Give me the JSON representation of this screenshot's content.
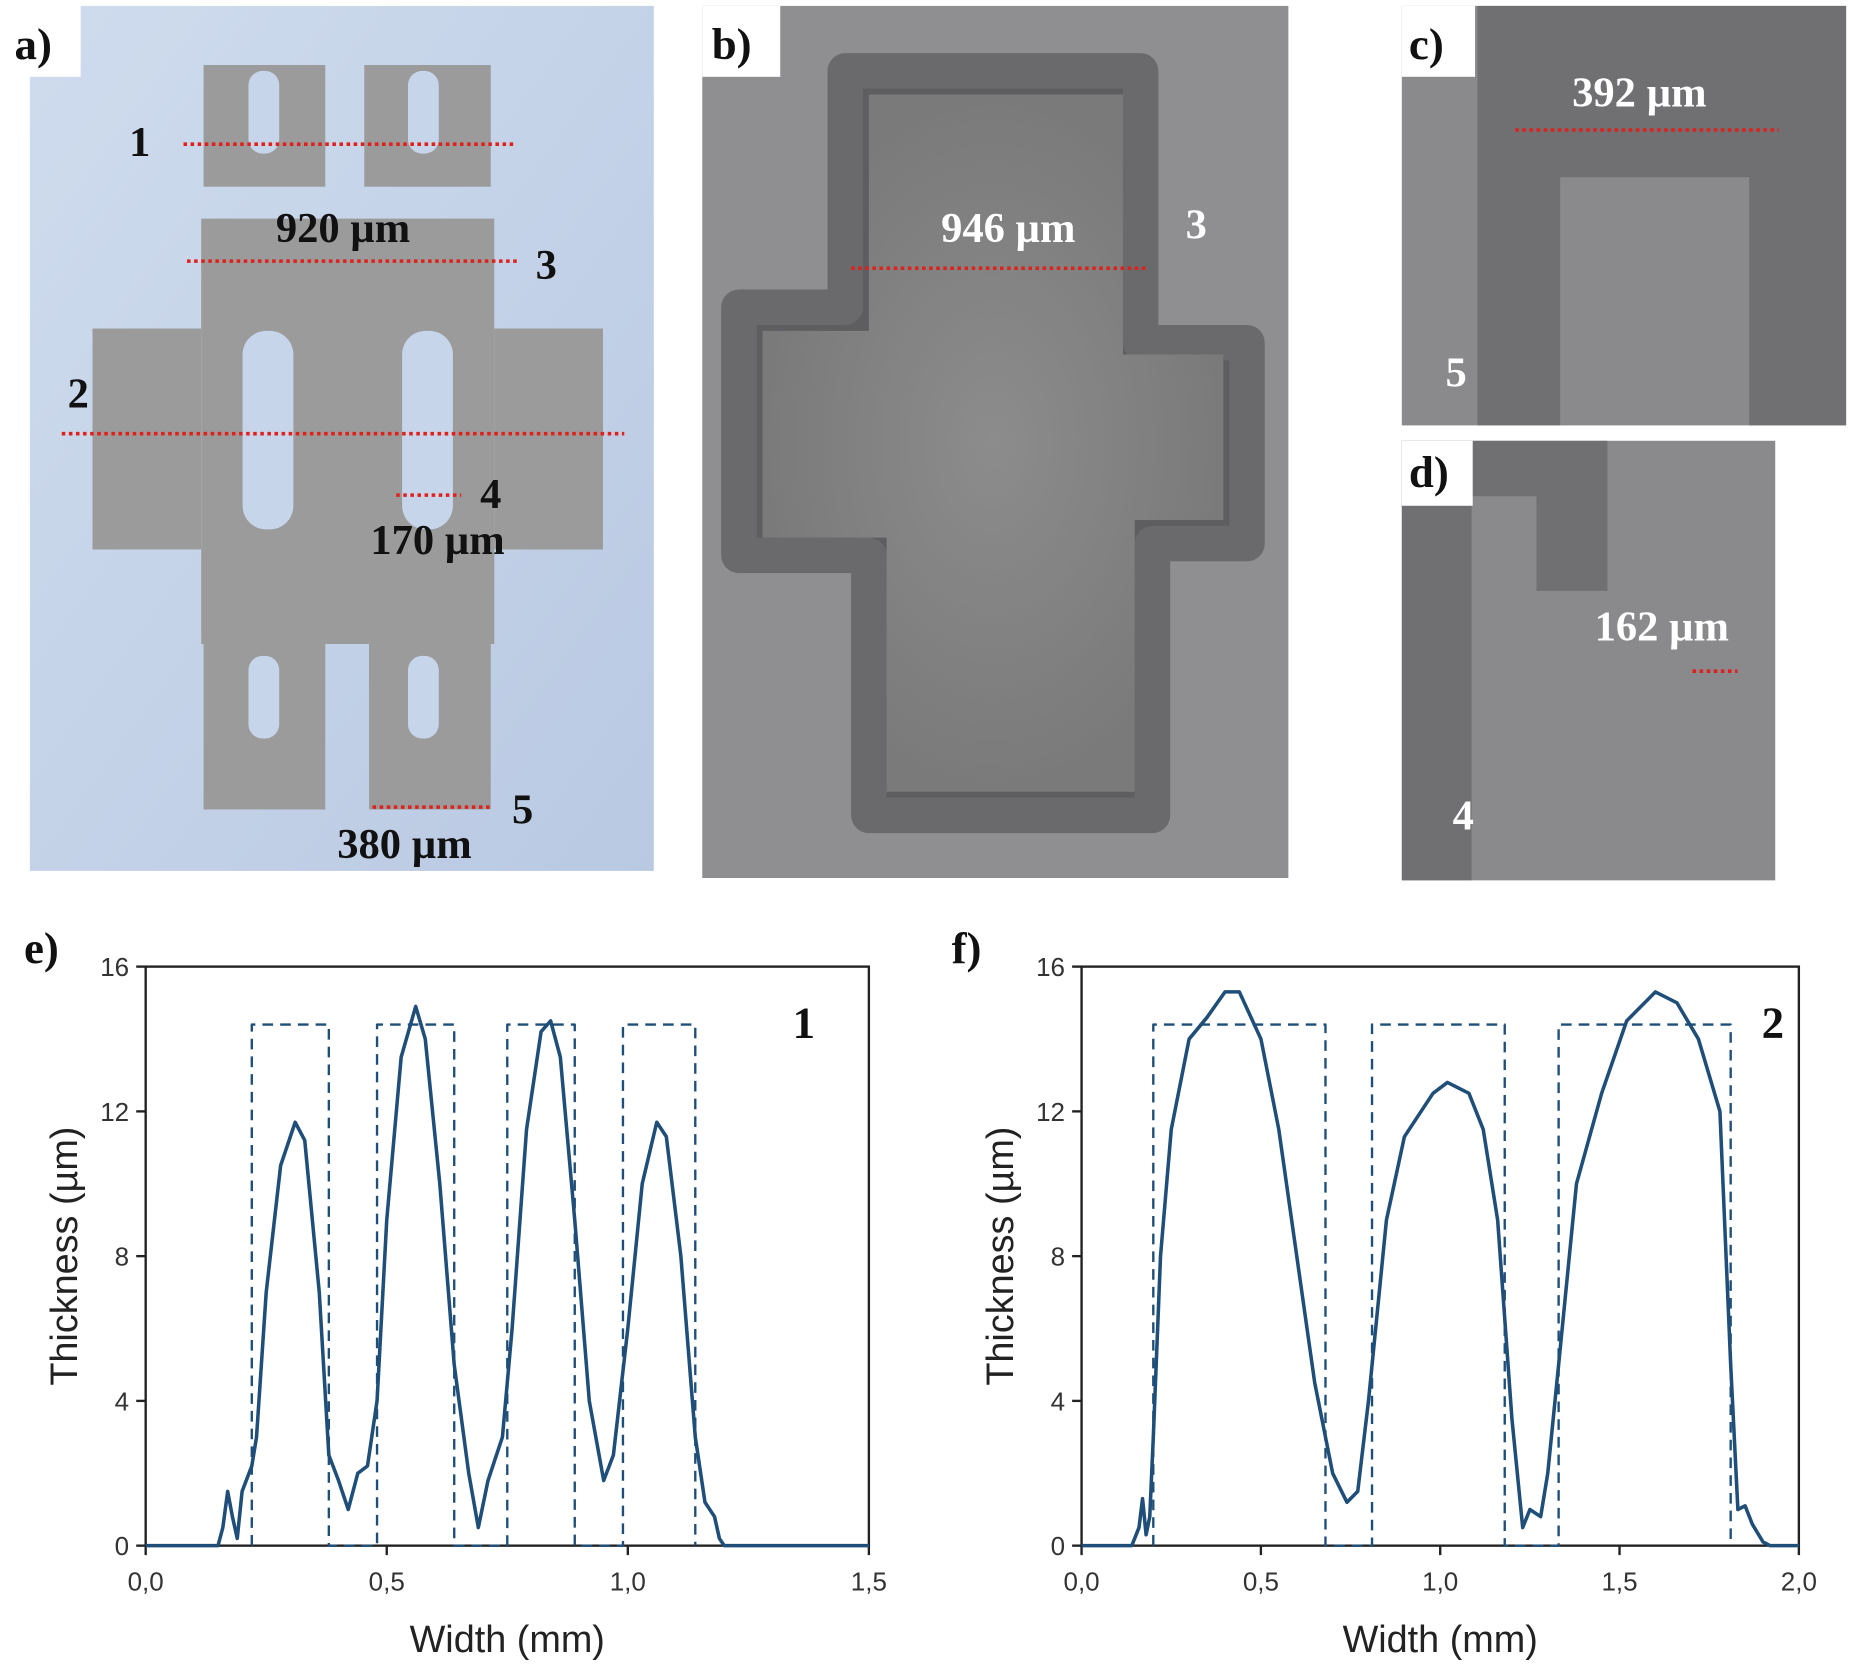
{
  "panels": [
    {
      "label": "a)",
      "annotations": [
        "1",
        "920 µm",
        "3",
        "2",
        "4",
        "170 µm",
        "5",
        "380 µm"
      ]
    },
    {
      "label": "b)",
      "annotations": [
        "946 µm",
        "3"
      ]
    },
    {
      "label": "c)",
      "annotations": [
        "392 µm",
        "5"
      ]
    },
    {
      "label": "d)",
      "annotations": [
        "162 µm",
        "4"
      ]
    }
  ],
  "chart_data": [
    {
      "type": "line",
      "panel_label": "e)",
      "annotation": "1",
      "x_label": "Width (mm)",
      "y_label": "Thickness (µm)",
      "xlim": [
        0,
        1.5
      ],
      "ylim": [
        0,
        16
      ],
      "xticks": [
        {
          "value": 0,
          "label": "0,0"
        },
        {
          "value": 0.5,
          "label": "0,5"
        },
        {
          "value": 1,
          "label": "1,0"
        },
        {
          "value": 1.5,
          "label": "1,5"
        }
      ],
      "yticks": [
        0,
        4,
        8,
        12,
        16
      ],
      "series": [
        {
          "color": "#1f4e79",
          "line_style": "solid",
          "x": [
            0,
            0.15,
            0.16,
            0.17,
            0.18,
            0.19,
            0.2,
            0.22,
            0.23,
            0.25,
            0.28,
            0.31,
            0.33,
            0.36,
            0.38,
            0.4,
            0.42,
            0.44,
            0.46,
            0.48,
            0.5,
            0.53,
            0.56,
            0.58,
            0.61,
            0.64,
            0.67,
            0.69,
            0.71,
            0.74,
            0.76,
            0.79,
            0.82,
            0.84,
            0.86,
            0.89,
            0.92,
            0.95,
            0.97,
            1.0,
            1.03,
            1.06,
            1.08,
            1.11,
            1.14,
            1.16,
            1.18,
            1.19,
            1.2,
            1.5
          ],
          "values": [
            0,
            0,
            0.5,
            1.5,
            0.8,
            0.2,
            1.5,
            2.2,
            3,
            7,
            10.5,
            11.7,
            11.2,
            7,
            2.5,
            1.8,
            1,
            2,
            2.2,
            4,
            9,
            13.5,
            14.9,
            14,
            10,
            5,
            2,
            0.5,
            1.8,
            3,
            6,
            11.5,
            14.2,
            14.5,
            13.5,
            9,
            4,
            1.8,
            2.5,
            6,
            10,
            11.7,
            11.3,
            8,
            3,
            1.2,
            0.8,
            0.2,
            0,
            0
          ]
        },
        {
          "color": "#1f4e79",
          "line_style": "dashed",
          "x": [
            0.22,
            0.22,
            0.38,
            0.38,
            0.48,
            0.48,
            0.64,
            0.64,
            0.75,
            0.75,
            0.89,
            0.89,
            0.99,
            0.99,
            1.14,
            1.14
          ],
          "values": [
            0,
            14.4,
            14.4,
            0,
            0,
            14.4,
            14.4,
            0,
            0,
            14.4,
            14.4,
            0,
            0,
            14.4,
            14.4,
            0
          ]
        }
      ]
    },
    {
      "type": "line",
      "panel_label": "f)",
      "annotation": "2",
      "x_label": "Width (mm)",
      "y_label": "Thickness (µm)",
      "xlim": [
        0,
        2
      ],
      "ylim": [
        0,
        16
      ],
      "xticks": [
        {
          "value": 0,
          "label": "0,0"
        },
        {
          "value": 0.5,
          "label": "0,5"
        },
        {
          "value": 1,
          "label": "1,0"
        },
        {
          "value": 1.5,
          "label": "1,5"
        },
        {
          "value": 2,
          "label": "2,0"
        }
      ],
      "yticks": [
        0,
        4,
        8,
        12,
        16
      ],
      "series": [
        {
          "color": "#1f4e79",
          "line_style": "solid",
          "x": [
            0,
            0.14,
            0.16,
            0.17,
            0.18,
            0.19,
            0.2,
            0.22,
            0.25,
            0.3,
            0.35,
            0.4,
            0.44,
            0.5,
            0.55,
            0.6,
            0.65,
            0.7,
            0.74,
            0.77,
            0.8,
            0.85,
            0.9,
            0.98,
            1.02,
            1.08,
            1.12,
            1.16,
            1.2,
            1.23,
            1.25,
            1.28,
            1.3,
            1.33,
            1.38,
            1.45,
            1.52,
            1.6,
            1.66,
            1.72,
            1.78,
            1.81,
            1.83,
            1.85,
            1.87,
            1.9,
            1.92,
            2.0
          ],
          "values": [
            0,
            0,
            0.5,
            1.3,
            0.3,
            0.8,
            3,
            8,
            11.5,
            14,
            14.6,
            15.3,
            15.3,
            14,
            11.5,
            8,
            4.5,
            2,
            1.2,
            1.5,
            4,
            9,
            11.3,
            12.5,
            12.8,
            12.5,
            11.5,
            9,
            3.5,
            0.5,
            1,
            0.8,
            2,
            5,
            10,
            12.5,
            14.5,
            15.3,
            15,
            14,
            12,
            5,
            1,
            1.1,
            0.6,
            0.1,
            0,
            0
          ]
        },
        {
          "color": "#1f4e79",
          "line_style": "dashed",
          "x": [
            0.2,
            0.2,
            0.68,
            0.68,
            0.81,
            0.81,
            1.18,
            1.18,
            1.33,
            1.33,
            1.81,
            1.81
          ],
          "values": [
            0,
            14.4,
            14.4,
            0,
            0,
            14.4,
            14.4,
            0,
            0,
            14.4,
            14.4,
            0
          ]
        }
      ]
    }
  ]
}
